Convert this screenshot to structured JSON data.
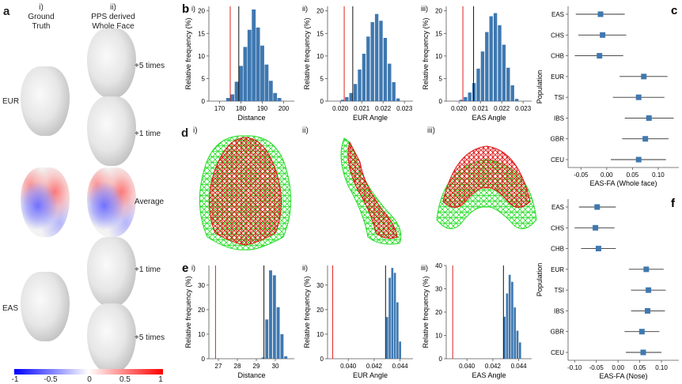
{
  "panel_a": {
    "label": "a",
    "col1_num": "i)",
    "col1_title1": "Ground",
    "col1_title2": "Truth",
    "col2_num": "ii)",
    "col2_title1": "PPS derived",
    "col2_title2": "Whole Face",
    "row_labels": {
      "eur": "EUR",
      "eas": "EAS"
    },
    "side_labels": [
      "+5 times",
      "+1 time",
      "Average",
      "+1 time",
      "+5 times"
    ],
    "colorbar_ticks": [
      "-1",
      "-0.5",
      "0",
      "0.5",
      "1"
    ]
  },
  "panel_d": {
    "label": "d",
    "subs": [
      "i)",
      "ii)",
      "iii)"
    ]
  },
  "chart_data": [
    {
      "id": "b_i",
      "type": "bar",
      "panel": "b",
      "sub": "i)",
      "xlabel": "Distance",
      "ylabel": "Relative frequency (%)",
      "xlim": [
        165,
        205
      ],
      "ylim": [
        0,
        21
      ],
      "xticks": [
        "170",
        "180",
        "190",
        "200"
      ],
      "yticks": [
        "0",
        "5",
        "10",
        "15",
        "20"
      ],
      "bin_width": 2,
      "bins": [
        174,
        176,
        178,
        180,
        182,
        184,
        186,
        188,
        190,
        192,
        194,
        196,
        198
      ],
      "values": [
        0.7,
        1.5,
        4.3,
        7.8,
        12.0,
        15.8,
        20.3,
        16.3,
        12.3,
        8.1,
        4.5,
        1.8,
        0.7
      ],
      "red_line": 175,
      "black_line": 179
    },
    {
      "id": "b_ii",
      "type": "bar",
      "panel": "",
      "sub": "ii)",
      "xlabel": "EUR Angle",
      "ylabel": "Relative frequency (%)",
      "xlim": [
        0.0194,
        0.0234
      ],
      "ylim": [
        0,
        21
      ],
      "xticks": [
        "0.020",
        "0.021",
        "0.022",
        "0.023"
      ],
      "yticks": [
        "0",
        "5",
        "10",
        "15",
        "20"
      ],
      "bin_width": 0.00018,
      "bins": [
        0.0201,
        0.0203,
        0.0205,
        0.0207,
        0.0209,
        0.0211,
        0.0213,
        0.0215,
        0.0217,
        0.0219,
        0.0221,
        0.0223,
        0.0225,
        0.0227
      ],
      "values": [
        0.3,
        0.9,
        1.8,
        3.8,
        7.0,
        10.5,
        14.3,
        17.5,
        19.3,
        17.8,
        14.0,
        8.3,
        4.2,
        0.6
      ],
      "red_line": 0.02018,
      "black_line": 0.02058
    },
    {
      "id": "b_iii",
      "type": "bar",
      "panel": "",
      "sub": "iii)",
      "xlabel": "EAS Angle",
      "ylabel": "Relative frequency (%)",
      "xlim": [
        0.0194,
        0.0234
      ],
      "ylim": [
        0,
        21
      ],
      "xticks": [
        "0.020",
        "0.021",
        "0.022",
        "0.023"
      ],
      "yticks": [
        "0",
        "5",
        "10",
        "15",
        "20"
      ],
      "bin_width": 0.00018,
      "bins": [
        0.0201,
        0.0203,
        0.0205,
        0.0207,
        0.0209,
        0.0211,
        0.0213,
        0.0215,
        0.0217,
        0.0219,
        0.0221,
        0.0223,
        0.0225,
        0.0227
      ],
      "values": [
        0.3,
        0.9,
        1.9,
        4.0,
        7.2,
        11.0,
        15.3,
        18.8,
        19.5,
        16.8,
        12.5,
        7.4,
        3.5,
        0.5
      ],
      "red_line": 0.02018,
      "black_line": 0.02068
    },
    {
      "id": "e_i",
      "type": "bar",
      "panel": "e",
      "sub": "i)",
      "xlabel": "Distance",
      "ylabel": "Relative frequency (%)",
      "xlim": [
        26.5,
        31.0
      ],
      "ylim": [
        0,
        38
      ],
      "xticks": [
        "27",
        "28",
        "29",
        "30"
      ],
      "yticks": [
        "0",
        "10",
        "20",
        "30"
      ],
      "bin_width": 0.18,
      "bins": [
        29.35,
        29.55,
        29.75,
        29.95,
        30.15,
        30.35,
        30.55
      ],
      "values": [
        0.5,
        16,
        36,
        34,
        21,
        10,
        1
      ],
      "red_line": 26.85,
      "black_line": 29.4
    },
    {
      "id": "e_ii",
      "type": "bar",
      "panel": "",
      "sub": "ii)",
      "xlabel": "EUR Angle",
      "ylabel": "Relative frequency (%)",
      "xlim": [
        0.0384,
        0.045
      ],
      "ylim": [
        0,
        38
      ],
      "xticks": [
        "0.040",
        "0.042",
        "0.044"
      ],
      "yticks": [
        "0",
        "10",
        "20",
        "30"
      ],
      "bin_width": 0.00018,
      "bins": [
        0.043,
        0.0432,
        0.0434,
        0.0436,
        0.0438,
        0.044
      ],
      "values": [
        17,
        33,
        37,
        35,
        23,
        7
      ],
      "red_line": 0.0388,
      "black_line": 0.04288
    },
    {
      "id": "e_iii",
      "type": "bar",
      "panel": "",
      "sub": "iii)",
      "xlabel": "EAS Angle",
      "ylabel": "Relative frequency (%)",
      "xlim": [
        0.0384,
        0.045
      ],
      "ylim": [
        0,
        40
      ],
      "xticks": [
        "0.040",
        "0.042",
        "0.044"
      ],
      "yticks": [
        "0",
        "10",
        "20",
        "30",
        "40"
      ],
      "bin_width": 0.00018,
      "bins": [
        0.0429,
        0.0431,
        0.0433,
        0.0435,
        0.0437,
        0.0439,
        0.0441
      ],
      "values": [
        18,
        28,
        36,
        33,
        22,
        12,
        7
      ],
      "red_line": 0.0389,
      "black_line": 0.04282
    },
    {
      "id": "c",
      "type": "forest",
      "panel": "c",
      "xlabel": "EAS-FA (Whole face)",
      "ylabel": "Population",
      "xlim": [
        -0.075,
        0.14
      ],
      "xticks": [
        "-0.05",
        "0.00",
        "0.05",
        "0.10"
      ],
      "xtick_values": [
        -0.05,
        0,
        0.05,
        0.1
      ],
      "categories": [
        "EAS",
        "CHS",
        "CHB",
        "EUR",
        "TSI",
        "IBS",
        "GBR",
        "CEU"
      ],
      "estimates": [
        -0.012,
        -0.008,
        -0.014,
        0.072,
        0.062,
        0.082,
        0.075,
        0.062
      ],
      "lower": [
        -0.06,
        -0.055,
        -0.062,
        0.025,
        0.012,
        0.035,
        0.03,
        0.008
      ],
      "upper": [
        0.035,
        0.038,
        0.032,
        0.118,
        0.112,
        0.13,
        0.12,
        0.115
      ]
    },
    {
      "id": "f",
      "type": "forest",
      "panel": "f",
      "xlabel": "EAS-FA (Nose)",
      "ylabel": "Population",
      "xlim": [
        -0.115,
        0.14
      ],
      "xticks": [
        "-0.10",
        "-0.05",
        "0.00",
        "0.05",
        "0.10"
      ],
      "xtick_values": [
        -0.1,
        -0.05,
        0,
        0.05,
        0.1
      ],
      "categories": [
        "EAS",
        "CHS",
        "CHB",
        "EUR",
        "TSI",
        "IBS",
        "GBR",
        "CEU"
      ],
      "estimates": [
        -0.048,
        -0.052,
        -0.045,
        0.065,
        0.07,
        0.068,
        0.055,
        0.058
      ],
      "lower": [
        -0.09,
        -0.1,
        -0.085,
        0.025,
        0.03,
        0.03,
        0.015,
        0.018
      ],
      "upper": [
        -0.005,
        -0.008,
        -0.005,
        0.105,
        0.11,
        0.108,
        0.095,
        0.1
      ]
    }
  ]
}
